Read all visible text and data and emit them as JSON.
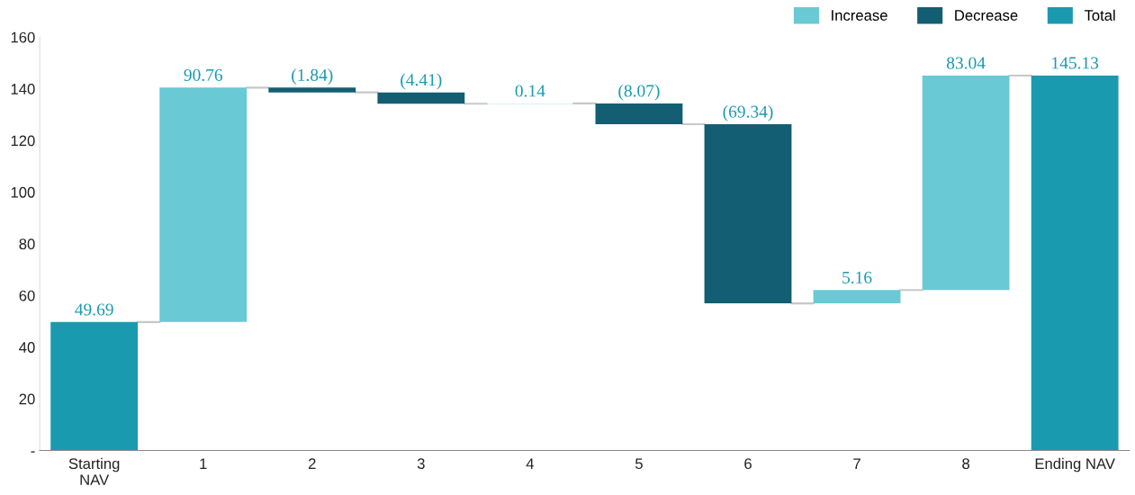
{
  "chart_data": {
    "type": "bar",
    "categories": [
      "Starting\nNAV",
      "1",
      "2",
      "3",
      "4",
      "5",
      "6",
      "7",
      "8",
      "Ending NAV"
    ],
    "series": [
      {
        "name": "Increase",
        "color": "#69c9d4",
        "values": [
          null,
          90.76,
          null,
          null,
          0.14,
          null,
          null,
          5.16,
          83.04,
          null
        ],
        "base": [
          null,
          49.69,
          null,
          null,
          134.2,
          null,
          null,
          56.93,
          62.09,
          null
        ],
        "value_labels": [
          null,
          "90.76",
          null,
          null,
          "0.14",
          null,
          null,
          "5.16",
          "83.04",
          null
        ]
      },
      {
        "name": "Decrease",
        "color": "#135e73",
        "values": [
          null,
          null,
          -1.84,
          -4.41,
          null,
          -8.07,
          -69.34,
          null,
          null,
          null
        ],
        "base": [
          null,
          null,
          140.45,
          138.61,
          null,
          134.34,
          126.27,
          null,
          null,
          null
        ],
        "value_labels": [
          null,
          null,
          "(1.84)",
          "(4.41)",
          null,
          "(8.07)",
          "(69.34)",
          null,
          null,
          null
        ]
      },
      {
        "name": "Total",
        "color": "#1a9aaf",
        "values": [
          49.69,
          null,
          null,
          null,
          null,
          null,
          null,
          null,
          null,
          145.13
        ],
        "value_labels": [
          "49.69",
          null,
          null,
          null,
          null,
          null,
          null,
          null,
          null,
          "145.13"
        ]
      }
    ],
    "ylim": [
      0,
      160
    ],
    "yticks": [
      {
        "value": 0,
        "label": "-"
      },
      20,
      40,
      60,
      80,
      100,
      120,
      140,
      160
    ],
    "grid": false,
    "legend": "top right"
  }
}
